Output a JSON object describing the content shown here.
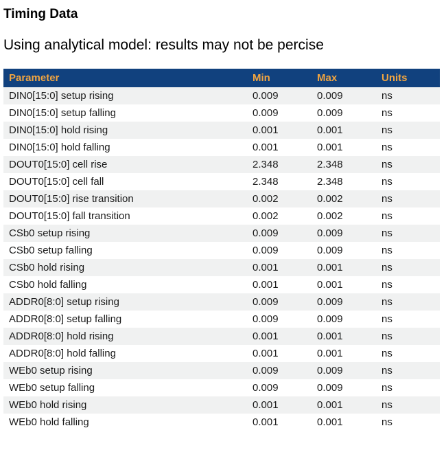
{
  "page": {
    "title": "Timing Data",
    "subtitle": "Using analytical model: results may not be percise"
  },
  "table": {
    "columns": [
      "Parameter",
      "Min",
      "Max",
      "Units"
    ],
    "rows": [
      [
        "DIN0[15:0] setup rising",
        "0.009",
        "0.009",
        "ns"
      ],
      [
        "DIN0[15:0] setup falling",
        "0.009",
        "0.009",
        "ns"
      ],
      [
        "DIN0[15:0] hold rising",
        "0.001",
        "0.001",
        "ns"
      ],
      [
        "DIN0[15:0] hold falling",
        "0.001",
        "0.001",
        "ns"
      ],
      [
        "DOUT0[15:0] cell rise",
        "2.348",
        "2.348",
        "ns"
      ],
      [
        "DOUT0[15:0] cell fall",
        "2.348",
        "2.348",
        "ns"
      ],
      [
        "DOUT0[15:0] rise transition",
        "0.002",
        "0.002",
        "ns"
      ],
      [
        "DOUT0[15:0] fall transition",
        "0.002",
        "0.002",
        "ns"
      ],
      [
        "CSb0 setup rising",
        "0.009",
        "0.009",
        "ns"
      ],
      [
        "CSb0 setup falling",
        "0.009",
        "0.009",
        "ns"
      ],
      [
        "CSb0 hold rising",
        "0.001",
        "0.001",
        "ns"
      ],
      [
        "CSb0 hold falling",
        "0.001",
        "0.001",
        "ns"
      ],
      [
        "ADDR0[8:0] setup rising",
        "0.009",
        "0.009",
        "ns"
      ],
      [
        "ADDR0[8:0] setup falling",
        "0.009",
        "0.009",
        "ns"
      ],
      [
        "ADDR0[8:0] hold rising",
        "0.001",
        "0.001",
        "ns"
      ],
      [
        "ADDR0[8:0] hold falling",
        "0.001",
        "0.001",
        "ns"
      ],
      [
        "WEb0 setup rising",
        "0.009",
        "0.009",
        "ns"
      ],
      [
        "WEb0 setup falling",
        "0.009",
        "0.009",
        "ns"
      ],
      [
        "WEb0 hold rising",
        "0.001",
        "0.001",
        "ns"
      ],
      [
        "WEb0 hold falling",
        "0.001",
        "0.001",
        "ns"
      ]
    ]
  },
  "colors": {
    "header_bg": "#11417e",
    "header_text": "#f2a540",
    "row_stripe": "#f0f1f1",
    "body_text": "#1b1b1b"
  }
}
